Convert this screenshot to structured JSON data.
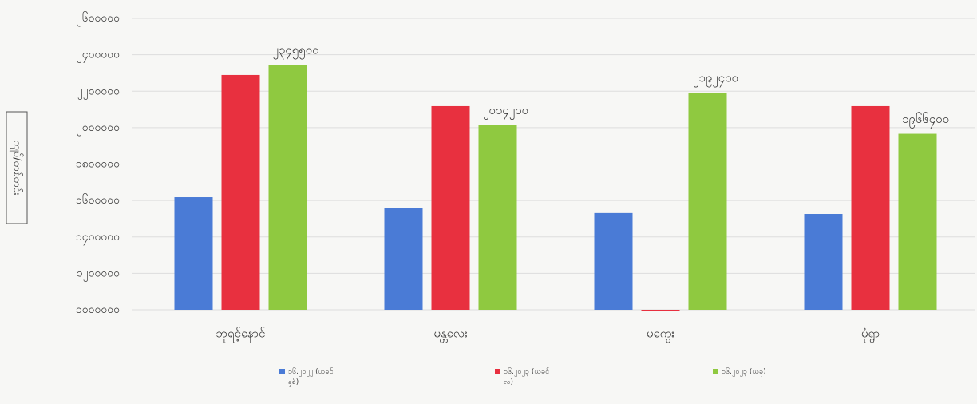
{
  "chart_data": {
    "type": "bar",
    "ylabel": "ကျပ်/တစ်တင်း",
    "categories": [
      "ဘုရင့်နောင်",
      "မန္တလေး",
      "မကွေး",
      "မုံရွာ"
    ],
    "series": [
      {
        "name": "၁၆.၂၀၂၂ (ယခင်နှစ်)",
        "color": "#4a7bd6",
        "values": [
          1618000,
          1561000,
          1531000,
          1526000
        ]
      },
      {
        "name": "၁၆.၂၀၂၃ (ယခင်လ)",
        "color": "#e8303f",
        "values": [
          2289000,
          2118000,
          1000000,
          2118000
        ]
      },
      {
        "name": "၁၆.၂၀၂၃ (ယခု)",
        "color": "#8fc940",
        "values": [
          2345500,
          2014200,
          2192400,
          1966400
        ],
        "value_labels": [
          "၂၃၄၅၅၀၀",
          "၂၀၁၄၂၀၀",
          "၂၁၉၂၄၀၀",
          "၁၉၆၆၄၀၀"
        ]
      }
    ],
    "ylim": [
      1000000,
      2600000
    ],
    "yticks": [
      {
        "value": 1000000,
        "label": "၁၀၀၀၀၀၀"
      },
      {
        "value": 1200000,
        "label": "၁၂၀၀၀၀၀"
      },
      {
        "value": 1400000,
        "label": "၁၄၀၀၀၀၀"
      },
      {
        "value": 1600000,
        "label": "၁၆၀၀၀၀၀"
      },
      {
        "value": 1800000,
        "label": "၁၈၀၀၀၀၀"
      },
      {
        "value": 2000000,
        "label": "၂၀၀၀၀၀၀"
      },
      {
        "value": 2200000,
        "label": "၂၂၀၀၀၀၀"
      },
      {
        "value": 2400000,
        "label": "၂၄၀၀၀၀၀"
      },
      {
        "value": 2600000,
        "label": "၂၆၀၀၀၀၀"
      }
    ],
    "grid": true
  }
}
